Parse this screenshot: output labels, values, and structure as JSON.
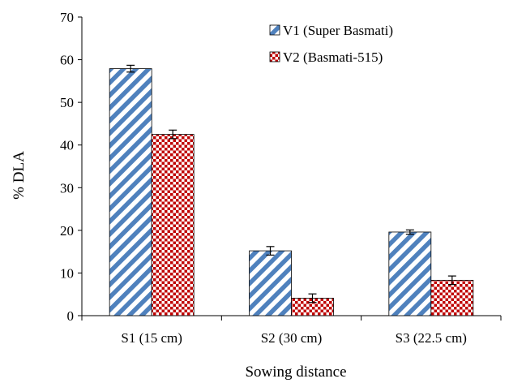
{
  "chart_data": {
    "type": "bar",
    "categories": [
      "S1 (15 cm)",
      "S2 (30 cm)",
      "S3 (22.5 cm)"
    ],
    "series": [
      {
        "name": "V1 (Super Basmati)",
        "values": [
          57.9,
          15.2,
          19.6
        ],
        "errors": [
          0.8,
          1.0,
          0.5
        ],
        "pattern": "diagonal-stripes",
        "color": "#4f81bd"
      },
      {
        "name": "V2 (Basmati-515)",
        "values": [
          42.5,
          4.1,
          8.3
        ],
        "errors": [
          1.0,
          1.0,
          1.0
        ],
        "pattern": "dots",
        "color": "#c00000"
      }
    ],
    "xlabel": "Sowing distance",
    "ylabel": "% DLA",
    "ylim": [
      0,
      70
    ],
    "yticks": [
      0,
      10,
      20,
      30,
      40,
      50,
      60,
      70
    ],
    "grid": false,
    "legend_position": "top-right",
    "error_bars": true
  }
}
